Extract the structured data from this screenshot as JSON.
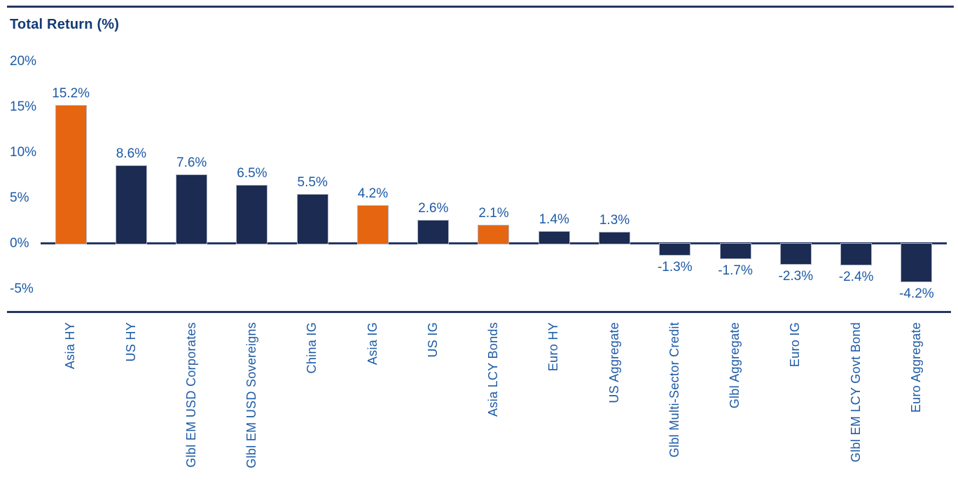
{
  "chart_data": {
    "type": "bar",
    "title": "Total Return (%)",
    "categories": [
      "Asia HY",
      "US HY",
      "Glbl EM USD Corporates",
      "Glbl EM USD Sovereigns",
      "China IG",
      "Asia IG",
      "US IG",
      "Asia LCY Bonds",
      "Euro HY",
      "US Aggregate",
      "Glbl Multi-Sector Credit",
      "Glbl Aggregate",
      "Euro IG",
      "Glbl EM LCY Govt Bond",
      "Euro Aggregate"
    ],
    "values": [
      15.2,
      8.6,
      7.6,
      6.5,
      5.5,
      4.2,
      2.6,
      2.1,
      1.4,
      1.3,
      -1.3,
      -1.7,
      -2.3,
      -2.4,
      -4.2
    ],
    "value_labels": [
      "15.2%",
      "8.6%",
      "7.6%",
      "6.5%",
      "5.5%",
      "4.2%",
      "2.6%",
      "2.1%",
      "1.4%",
      "1.3%",
      "-1.3%",
      "-1.7%",
      "-2.3%",
      "-2.4%",
      "-4.2%"
    ],
    "bar_color_keys": [
      "orange",
      "navy",
      "navy",
      "navy",
      "navy",
      "orange",
      "navy",
      "orange",
      "navy",
      "navy",
      "navy",
      "navy",
      "navy",
      "navy",
      "navy"
    ],
    "yticks": [
      {
        "label": "20%",
        "value": 20
      },
      {
        "label": "15%",
        "value": 15
      },
      {
        "label": "10%",
        "value": 10
      },
      {
        "label": "5%",
        "value": 5
      },
      {
        "label": "0%",
        "value": 0
      },
      {
        "label": "-5%",
        "value": -5
      }
    ],
    "ylim": [
      -5,
      20
    ],
    "grid": false,
    "legend": false,
    "colors": {
      "bar_navy": "#1C2B52",
      "bar_orange": "#E66511",
      "label_blue": "#1D5AA5",
      "title_navy": "#123A76",
      "rule_navy": "#243765",
      "bar_border": "#AEB6C6"
    }
  }
}
